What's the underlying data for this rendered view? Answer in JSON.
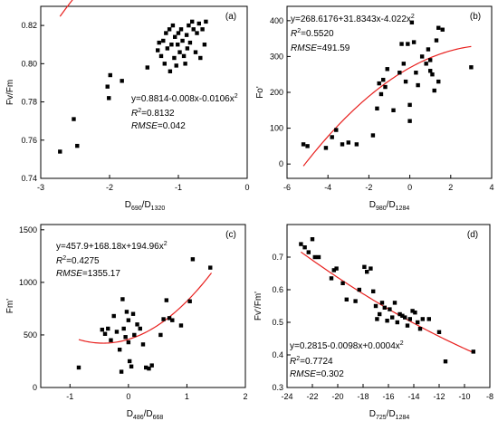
{
  "colors": {
    "points": "#000000",
    "fit": "#e8201e",
    "axis": "#000000"
  },
  "chart_data": [
    {
      "type": "scatter",
      "panel": "(a)",
      "xlabel": {
        "main": "D",
        "sub1": "690",
        "sep": "/D",
        "sub2": "1320"
      },
      "ylabel": "Fv/Fm",
      "xlim": [
        -3,
        0
      ],
      "ylim": [
        0.74,
        0.83
      ],
      "xticks": [
        -3,
        -2,
        -1,
        0
      ],
      "yticks": [
        0.74,
        0.76,
        0.78,
        0.8,
        0.82
      ],
      "ytick_labels": [
        "0.74",
        "0.76",
        "0.78",
        "0.80",
        "0.82"
      ],
      "fit": {
        "type": "poly2",
        "coef": [
          0.8814,
          -0.008,
          -0.0106
        ],
        "range": [
          -2.72,
          -0.6
        ]
      },
      "equation": {
        "text": "y=0.8814-0.008x-0.0106x",
        "sup": "2"
      },
      "r2": {
        "label": "R",
        "sup": "2",
        "value": "=0.8132"
      },
      "rmse": {
        "label": "RMSE",
        "value": "=0.042"
      },
      "points": [
        [
          -2.72,
          0.754
        ],
        [
          -2.52,
          0.771
        ],
        [
          -2.47,
          0.757
        ],
        [
          -2.03,
          0.788
        ],
        [
          -2.01,
          0.782
        ],
        [
          -1.99,
          0.794
        ],
        [
          -1.82,
          0.791
        ],
        [
          -1.45,
          0.798
        ],
        [
          -1.3,
          0.807
        ],
        [
          -1.28,
          0.811
        ],
        [
          -1.25,
          0.804
        ],
        [
          -1.22,
          0.812
        ],
        [
          -1.2,
          0.8
        ],
        [
          -1.18,
          0.816
        ],
        [
          -1.16,
          0.808
        ],
        [
          -1.13,
          0.818
        ],
        [
          -1.12,
          0.796
        ],
        [
          -1.1,
          0.81
        ],
        [
          -1.08,
          0.82
        ],
        [
          -1.06,
          0.803
        ],
        [
          -1.05,
          0.814
        ],
        [
          -1.03,
          0.799
        ],
        [
          -1.01,
          0.81
        ],
        [
          -1.0,
          0.816
        ],
        [
          -0.98,
          0.806
        ],
        [
          -0.96,
          0.818
        ],
        [
          -0.94,
          0.812
        ],
        [
          -0.92,
          0.804
        ],
        [
          -0.9,
          0.8
        ],
        [
          -0.88,
          0.815
        ],
        [
          -0.87,
          0.808
        ],
        [
          -0.85,
          0.82
        ],
        [
          -0.83,
          0.811
        ],
        [
          -0.8,
          0.822
        ],
        [
          -0.78,
          0.818
        ],
        [
          -0.75,
          0.806
        ],
        [
          -0.73,
          0.816
        ],
        [
          -0.7,
          0.821
        ],
        [
          -0.68,
          0.803
        ],
        [
          -0.65,
          0.818
        ],
        [
          -0.62,
          0.81
        ],
        [
          -0.6,
          0.822
        ]
      ]
    },
    {
      "type": "scatter",
      "panel": "(b)",
      "xlabel": {
        "main": "D",
        "sub1": "980",
        "sep": "/D",
        "sub2": "1284"
      },
      "ylabel": "Fo'",
      "xlim": [
        -6,
        4
      ],
      "ylim": [
        -40,
        440
      ],
      "xticks": [
        -6,
        -4,
        -2,
        0,
        2,
        4
      ],
      "yticks": [
        0,
        100,
        200,
        300,
        400
      ],
      "ytick_labels": [
        "0",
        "100",
        "200",
        "300",
        "400"
      ],
      "fit": {
        "type": "poly2",
        "coef": [
          268.6176,
          31.8343,
          -4.022
        ],
        "range": [
          -5.2,
          3.0
        ]
      },
      "equation": {
        "text": "y=268.6176+31.8343x-4.022x",
        "sup": "2"
      },
      "r2": {
        "label": "R",
        "sup": "2",
        "value": "=0.5520"
      },
      "rmse": {
        "label": "RMSE",
        "value": "=491.59"
      },
      "points": [
        [
          -5.2,
          55
        ],
        [
          -5.0,
          50
        ],
        [
          -4.1,
          45
        ],
        [
          -3.8,
          75
        ],
        [
          -3.6,
          95
        ],
        [
          -3.3,
          55
        ],
        [
          -3.0,
          60
        ],
        [
          -2.6,
          55
        ],
        [
          -1.8,
          80
        ],
        [
          -1.6,
          155
        ],
        [
          -1.5,
          225
        ],
        [
          -1.4,
          195
        ],
        [
          -1.3,
          235
        ],
        [
          -1.2,
          215
        ],
        [
          -1.1,
          265
        ],
        [
          -0.8,
          150
        ],
        [
          -0.5,
          255
        ],
        [
          -0.4,
          335
        ],
        [
          -0.3,
          280
        ],
        [
          -0.2,
          230
        ],
        [
          -0.1,
          335
        ],
        [
          0.0,
          120
        ],
        [
          0.0,
          165
        ],
        [
          0.1,
          395
        ],
        [
          0.2,
          340
        ],
        [
          0.3,
          255
        ],
        [
          0.4,
          220
        ],
        [
          0.6,
          300
        ],
        [
          0.8,
          280
        ],
        [
          0.9,
          320
        ],
        [
          1.0,
          290
        ],
        [
          1.0,
          260
        ],
        [
          1.1,
          250
        ],
        [
          1.2,
          205
        ],
        [
          1.3,
          345
        ],
        [
          1.4,
          230
        ],
        [
          1.4,
          380
        ],
        [
          1.6,
          375
        ],
        [
          3.0,
          270
        ]
      ]
    },
    {
      "type": "scatter",
      "panel": "(c)",
      "xlabel": {
        "main": "D",
        "sub1": "486",
        "sep": "/D",
        "sub2": "668"
      },
      "ylabel": "Fm'",
      "xlim": [
        -1.5,
        2
      ],
      "ylim": [
        0,
        1550
      ],
      "xticks": [
        -1,
        0,
        1,
        2
      ],
      "yticks": [
        0,
        500,
        1000,
        1500
      ],
      "ytick_labels": [
        "0",
        "500",
        "1000",
        "1500"
      ],
      "fit": {
        "type": "poly2",
        "coef": [
          457.9,
          168.18,
          194.96
        ],
        "range": [
          -0.85,
          1.42
        ]
      },
      "equation": {
        "text": "y=457.9+168.18x+194.96x",
        "sup": "2"
      },
      "r2": {
        "label": "R",
        "sup": "2",
        "value": "=0.4275"
      },
      "rmse": {
        "label": "RMSE",
        "value": "=1355.17"
      },
      "points": [
        [
          -0.85,
          190
        ],
        [
          -0.45,
          550
        ],
        [
          -0.4,
          510
        ],
        [
          -0.35,
          560
        ],
        [
          -0.3,
          450
        ],
        [
          -0.25,
          680
        ],
        [
          -0.2,
          530
        ],
        [
          -0.15,
          360
        ],
        [
          -0.12,
          150
        ],
        [
          -0.1,
          840
        ],
        [
          -0.08,
          560
        ],
        [
          -0.05,
          480
        ],
        [
          -0.03,
          720
        ],
        [
          0.0,
          430
        ],
        [
          0.0,
          640
        ],
        [
          0.02,
          250
        ],
        [
          0.05,
          200
        ],
        [
          0.08,
          700
        ],
        [
          0.1,
          500
        ],
        [
          0.15,
          600
        ],
        [
          0.2,
          560
        ],
        [
          0.25,
          410
        ],
        [
          0.3,
          190
        ],
        [
          0.35,
          180
        ],
        [
          0.4,
          210
        ],
        [
          0.55,
          500
        ],
        [
          0.6,
          650
        ],
        [
          0.65,
          830
        ],
        [
          0.7,
          660
        ],
        [
          0.75,
          640
        ],
        [
          0.9,
          590
        ],
        [
          1.05,
          820
        ],
        [
          1.1,
          1220
        ],
        [
          1.4,
          1140
        ]
      ]
    },
    {
      "type": "scatter",
      "panel": "(d)",
      "xlabel": {
        "main": "D",
        "sub1": "725",
        "sep": "/D",
        "sub2": "1284"
      },
      "ylabel": "Fv'/Fm'",
      "xlim": [
        -24,
        -8
      ],
      "ylim": [
        0.3,
        0.8
      ],
      "xticks": [
        -24,
        -22,
        -20,
        -18,
        -16,
        -14,
        -12,
        -10,
        -8
      ],
      "yticks": [
        0.3,
        0.4,
        0.5,
        0.6,
        0.7
      ],
      "ytick_labels": [
        "0.3",
        "0.4",
        "0.5",
        "0.6",
        "0.7"
      ],
      "fit": {
        "type": "poly2",
        "coef": [
          0.2815,
          -0.0098,
          0.0004
        ],
        "range": [
          -22.9,
          -9.4
        ]
      },
      "equation": {
        "text": "y=0.2815-0.0098x+0.0004x",
        "sup": "2"
      },
      "r2": {
        "label": "R",
        "sup": "2",
        "value": "=0.7724"
      },
      "rmse": {
        "label": "RMSE",
        "value": "=0.302"
      },
      "points": [
        [
          -22.9,
          0.74
        ],
        [
          -22.6,
          0.73
        ],
        [
          -22.3,
          0.715
        ],
        [
          -22.0,
          0.755
        ],
        [
          -21.8,
          0.7
        ],
        [
          -21.5,
          0.7
        ],
        [
          -20.5,
          0.635
        ],
        [
          -20.3,
          0.66
        ],
        [
          -20.1,
          0.665
        ],
        [
          -19.6,
          0.62
        ],
        [
          -19.3,
          0.57
        ],
        [
          -18.6,
          0.565
        ],
        [
          -18.3,
          0.6
        ],
        [
          -17.9,
          0.67
        ],
        [
          -17.7,
          0.655
        ],
        [
          -17.4,
          0.665
        ],
        [
          -17.2,
          0.595
        ],
        [
          -17.0,
          0.55
        ],
        [
          -16.9,
          0.51
        ],
        [
          -16.7,
          0.525
        ],
        [
          -16.5,
          0.56
        ],
        [
          -16.3,
          0.545
        ],
        [
          -16.1,
          0.505
        ],
        [
          -15.9,
          0.54
        ],
        [
          -15.7,
          0.515
        ],
        [
          -15.5,
          0.56
        ],
        [
          -15.3,
          0.5
        ],
        [
          -15.1,
          0.525
        ],
        [
          -14.9,
          0.52
        ],
        [
          -14.7,
          0.515
        ],
        [
          -14.5,
          0.49
        ],
        [
          -14.3,
          0.51
        ],
        [
          -14.1,
          0.535
        ],
        [
          -13.9,
          0.53
        ],
        [
          -13.7,
          0.5
        ],
        [
          -13.5,
          0.48
        ],
        [
          -13.3,
          0.51
        ],
        [
          -12.8,
          0.51
        ],
        [
          -12.0,
          0.47
        ],
        [
          -11.5,
          0.38
        ],
        [
          -9.3,
          0.41
        ]
      ]
    }
  ]
}
